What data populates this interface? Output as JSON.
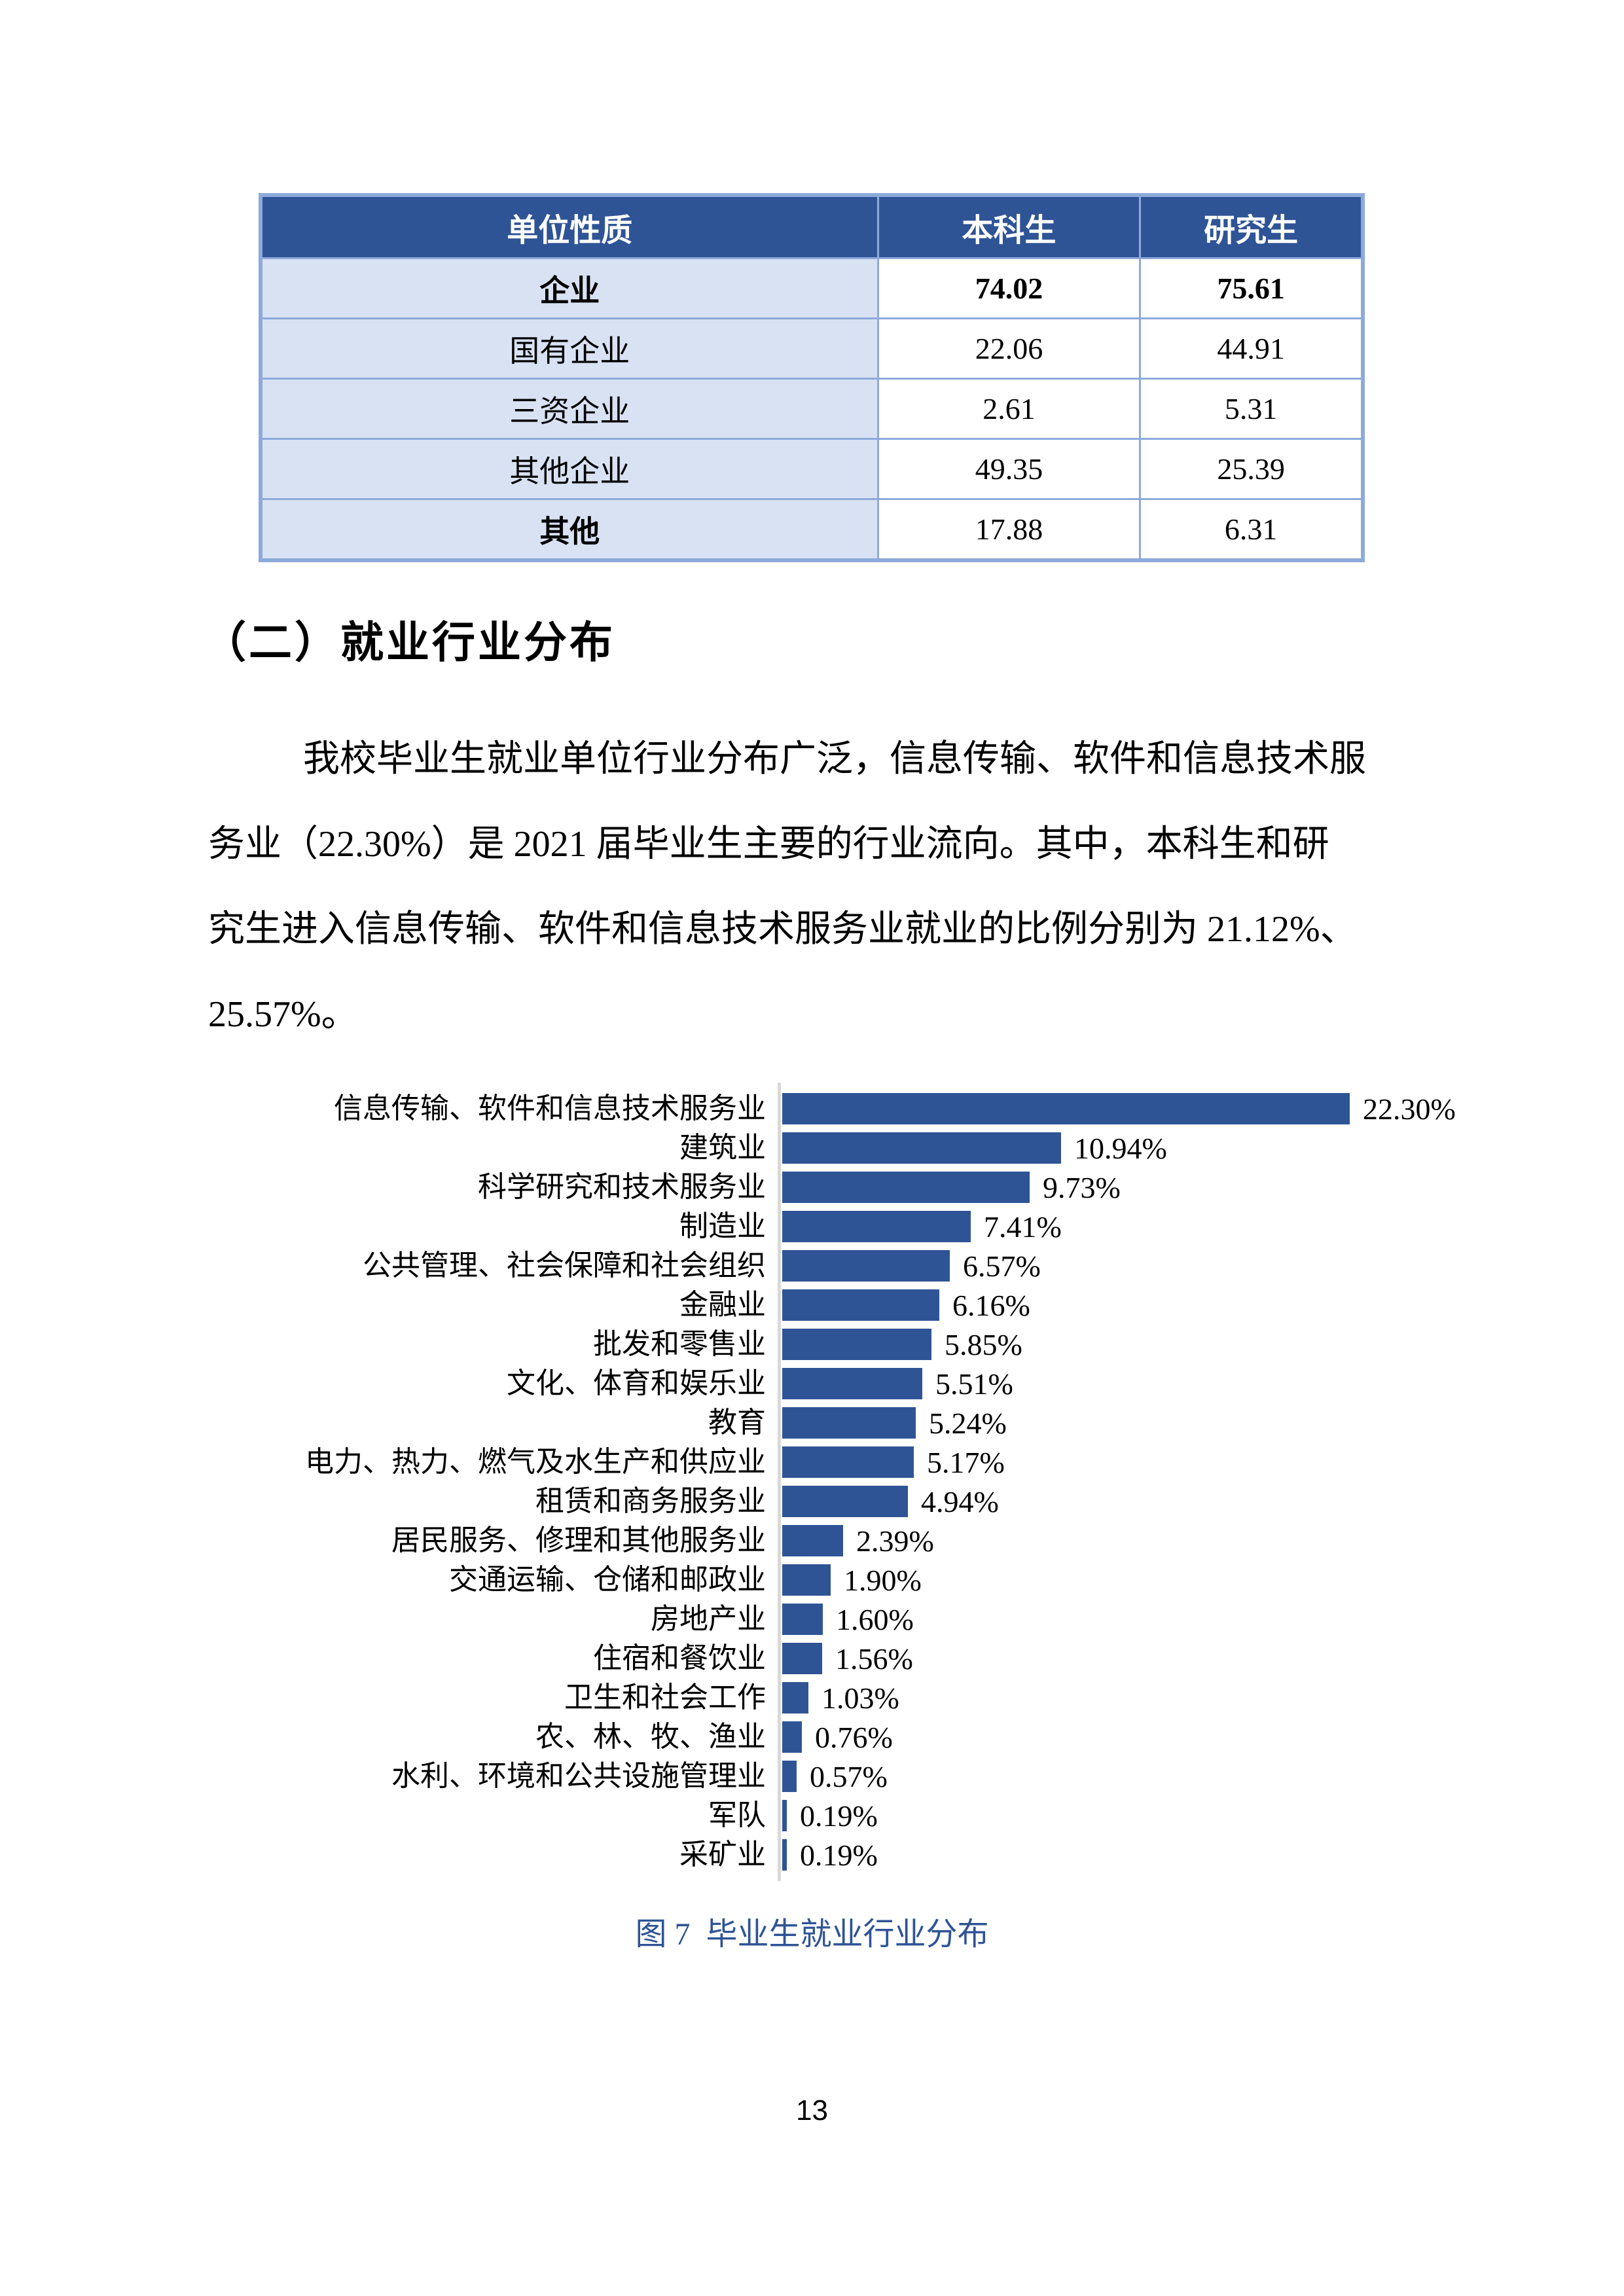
{
  "table": {
    "headers": [
      "单位性质",
      "本科生",
      "研究生"
    ],
    "rows": [
      {
        "label": "企业",
        "undergrad": "74.02",
        "grad": "75.61",
        "row_bold": true,
        "label_bold": true
      },
      {
        "label": "国有企业",
        "undergrad": "22.06",
        "grad": "44.91",
        "row_bold": false,
        "label_bold": false
      },
      {
        "label": "三资企业",
        "undergrad": "2.61",
        "grad": "5.31",
        "row_bold": false,
        "label_bold": false
      },
      {
        "label": "其他企业",
        "undergrad": "49.35",
        "grad": "25.39",
        "row_bold": false,
        "label_bold": false
      },
      {
        "label": "其他",
        "undergrad": "17.88",
        "grad": "6.31",
        "row_bold": false,
        "label_bold": true
      }
    ]
  },
  "section": {
    "heading": "（二）就业行业分布"
  },
  "paragraph": {
    "lines": [
      "我校毕业生就业单位行业分布广泛，信息传输、软件和信息技术服",
      "务业（22.30%）是 2021 届毕业生主要的行业流向。其中，本科生和研",
      "究生进入信息传输、软件和信息技术服务业就业的比例分别为 21.12%、",
      "25.57%。"
    ]
  },
  "chart": {
    "caption": "图 7  毕业生就业行业分布"
  },
  "chart_data": {
    "type": "bar",
    "orientation": "horizontal",
    "title": "图 7  毕业生就业行业分布",
    "xlabel": "",
    "ylabel": "",
    "xlim": [
      0,
      24
    ],
    "grid": false,
    "legend": "none",
    "bar_color": "#2F5496",
    "axis_color": "#D9D9D9",
    "categories": [
      "信息传输、软件和信息技术服务业",
      "建筑业",
      "科学研究和技术服务业",
      "制造业",
      "公共管理、社会保障和社会组织",
      "金融业",
      "批发和零售业",
      "文化、体育和娱乐业",
      "教育",
      "电力、热力、燃气及水生产和供应业",
      "租赁和商务服务业",
      "居民服务、修理和其他服务业",
      "交通运输、仓储和邮政业",
      "房地产业",
      "住宿和餐饮业",
      "卫生和社会工作",
      "农、林、牧、渔业",
      "水利、环境和公共设施管理业",
      "军队",
      "采矿业"
    ],
    "values": [
      22.3,
      10.94,
      9.73,
      7.41,
      6.57,
      6.16,
      5.85,
      5.51,
      5.24,
      5.17,
      4.94,
      2.39,
      1.9,
      1.6,
      1.56,
      1.03,
      0.76,
      0.57,
      0.19,
      0.19
    ],
    "value_labels": [
      "22.30%",
      "10.94%",
      "9.73%",
      "7.41%",
      "6.57%",
      "6.16%",
      "5.85%",
      "5.51%",
      "5.24%",
      "5.17%",
      "4.94%",
      "2.39%",
      "1.90%",
      "1.60%",
      "1.56%",
      "1.03%",
      "0.76%",
      "0.57%",
      "0.19%",
      "0.19%"
    ]
  },
  "page": {
    "number": "13"
  },
  "colors": {
    "table_header_bg": "#2F5496",
    "table_border": "#8EAADB",
    "table_label_bg": "#D9E2F3",
    "bar": "#2F5496",
    "caption": "#2F5496",
    "axis": "#D9D9D9"
  }
}
